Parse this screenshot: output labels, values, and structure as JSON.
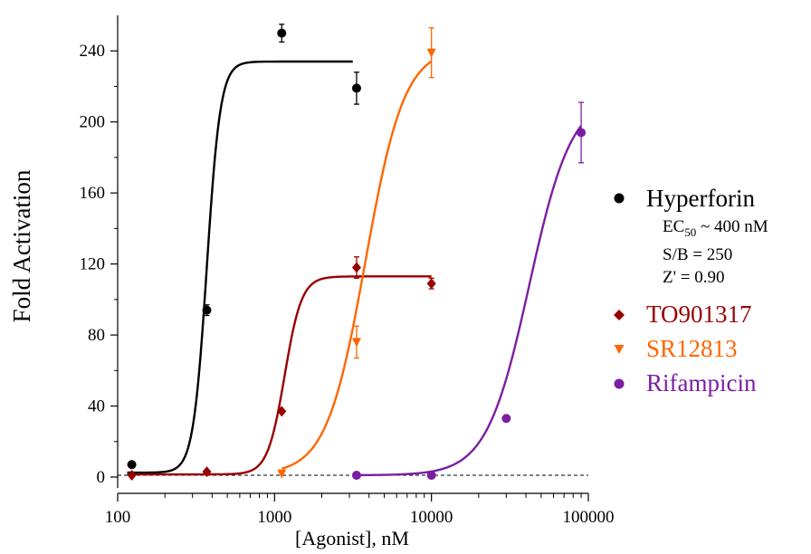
{
  "chart_data": {
    "type": "scatter",
    "xlabel": "[Agonist], nM",
    "ylabel": "Fold Activation",
    "xscale": "log",
    "xlim": [
      100,
      100000
    ],
    "ylim": [
      0,
      260
    ],
    "x_ticks": [
      "100",
      "1000",
      "10000",
      "100000"
    ],
    "y_ticks": [
      "0",
      "40",
      "80",
      "120",
      "160",
      "200",
      "240"
    ],
    "baseline": 1,
    "legend_position": "right",
    "series": [
      {
        "name": "Hyperforin",
        "color": "#000000",
        "marker": "circle",
        "points": [
          {
            "x": 123,
            "y": 7,
            "err": 0
          },
          {
            "x": 370,
            "y": 94,
            "err": 3
          },
          {
            "x": 1111,
            "y": 250,
            "err": 5
          },
          {
            "x": 3333,
            "y": 219,
            "err": 9
          }
        ],
        "fit": {
          "bottom": 2.5,
          "top": 234,
          "ec50": 370,
          "hill": 10,
          "xmin": 115,
          "xmax": 3150
        }
      },
      {
        "name": "TO901317",
        "color": "#990000",
        "marker": "diamond",
        "points": [
          {
            "x": 123,
            "y": 1,
            "err": 0
          },
          {
            "x": 370,
            "y": 3,
            "err": 0
          },
          {
            "x": 1111,
            "y": 37,
            "err": 0
          },
          {
            "x": 3333,
            "y": 118,
            "err": 6
          },
          {
            "x": 10000,
            "y": 109,
            "err": 3
          }
        ],
        "fit": {
          "bottom": 1.5,
          "top": 113,
          "ec50": 1160,
          "hill": 8,
          "xmin": 115,
          "xmax": 10000
        }
      },
      {
        "name": "SR12813",
        "color": "#ff6600",
        "marker": "triangle-down",
        "points": [
          {
            "x": 1111,
            "y": 2,
            "err": 0
          },
          {
            "x": 3333,
            "y": 76,
            "err": 9
          },
          {
            "x": 10000,
            "y": 239,
            "err": 14
          }
        ],
        "fit": {
          "bottom": 1.5,
          "top": 242,
          "ec50": 3800,
          "hill": 3.5,
          "xmin": 1111,
          "xmax": 10000
        }
      },
      {
        "name": "Rifampicin",
        "color": "#7b1fa2",
        "marker": "circle",
        "points": [
          {
            "x": 3333,
            "y": 1,
            "err": 0
          },
          {
            "x": 10000,
            "y": 1,
            "err": 0
          },
          {
            "x": 30000,
            "y": 33,
            "err": 0
          },
          {
            "x": 90000,
            "y": 194,
            "err": 17
          }
        ],
        "fit": {
          "bottom": 1,
          "top": 215,
          "ec50": 42000,
          "hill": 3.2,
          "xmin": 3333,
          "xmax": 90000
        }
      }
    ],
    "annotations": {
      "ec50": {
        "prefix": "EC",
        "sub": "50",
        "suffix": " ~ 400 nM"
      },
      "sb": "S/B = 250",
      "z": "Z' = 0.90"
    }
  }
}
